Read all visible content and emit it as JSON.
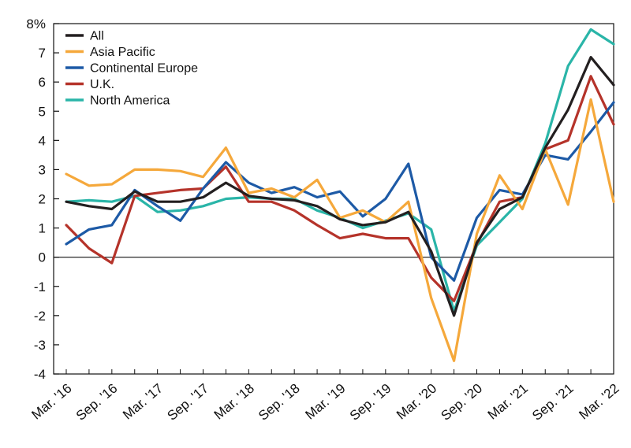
{
  "chart_data": {
    "type": "line",
    "title": "",
    "xlabel": "",
    "ylabel": "",
    "ylim": [
      -4,
      8
    ],
    "y_ticks": [
      -4,
      -3,
      -2,
      -1,
      0,
      1,
      2,
      3,
      4,
      5,
      6,
      7,
      8
    ],
    "y_tick_labels": [
      "-4",
      "-3",
      "-2",
      "-1",
      "0",
      "1",
      "2",
      "3",
      "4",
      "5",
      "6",
      "7",
      "8%"
    ],
    "x": [
      "Mar. '16",
      "Jun. '16",
      "Sep. '16",
      "Dec. '16",
      "Mar. '17",
      "Jun. '17",
      "Sep. '17",
      "Dec. '17",
      "Mar. '18",
      "Jun. '18",
      "Sep. '18",
      "Dec. '18",
      "Mar. '19",
      "Jun. '19",
      "Sep. '19",
      "Dec. '19",
      "Mar. '20",
      "Jun. '20",
      "Sep. '20",
      "Dec. '20",
      "Mar. '21",
      "Jun. '21",
      "Sep. '21",
      "Dec. '21",
      "Mar. '22"
    ],
    "x_tick_labels": [
      "Mar. '16",
      "Sep. '16",
      "Mar. '17",
      "Sep. '17",
      "Mar. '18",
      "Sep. '18",
      "Mar. '19",
      "Sep. '19",
      "Mar. '20",
      "Sep. '20",
      "Mar. '21",
      "Sep. '21",
      "Mar. '22"
    ],
    "grid": false,
    "legend_position": "top-left",
    "series": [
      {
        "name": "All",
        "color": "#231f20",
        "values": [
          1.9,
          1.75,
          1.65,
          2.25,
          1.9,
          1.9,
          2.05,
          2.55,
          2.1,
          2.0,
          1.95,
          1.75,
          1.3,
          1.1,
          1.2,
          1.55,
          0.2,
          -2.0,
          0.5,
          1.65,
          2.05,
          3.75,
          5.05,
          6.85,
          5.9
        ]
      },
      {
        "name": "Asia Pacific",
        "color": "#f5a83b",
        "values": [
          2.85,
          2.45,
          2.5,
          3.0,
          3.0,
          2.95,
          2.75,
          3.75,
          2.2,
          2.35,
          2.05,
          2.65,
          1.35,
          1.6,
          1.2,
          1.9,
          -1.4,
          -3.55,
          0.8,
          2.8,
          1.65,
          3.7,
          1.8,
          5.4,
          1.9
        ]
      },
      {
        "name": "Continental Europe",
        "color": "#1d5aa6",
        "values": [
          0.45,
          0.95,
          1.1,
          2.3,
          1.75,
          1.25,
          2.35,
          3.25,
          2.55,
          2.2,
          2.4,
          2.05,
          2.25,
          1.4,
          2.0,
          3.2,
          0.0,
          -0.8,
          1.35,
          2.3,
          2.15,
          3.5,
          3.35,
          4.3,
          5.3
        ]
      },
      {
        "name": "U.K.",
        "color": "#b5332a",
        "values": [
          1.1,
          0.3,
          -0.2,
          2.1,
          2.2,
          2.3,
          2.35,
          3.1,
          1.9,
          1.9,
          1.6,
          1.1,
          0.65,
          0.8,
          0.65,
          0.65,
          -0.7,
          -1.5,
          0.45,
          1.9,
          2.05,
          3.7,
          4.0,
          6.2,
          4.55
        ]
      },
      {
        "name": "North America",
        "color": "#2ab5a8",
        "values": [
          1.9,
          1.95,
          1.9,
          2.1,
          1.55,
          1.6,
          1.75,
          2.0,
          2.05,
          2.0,
          2.0,
          1.6,
          1.35,
          1.0,
          1.25,
          1.5,
          0.95,
          -1.85,
          0.4,
          1.2,
          2.0,
          3.9,
          6.55,
          7.8,
          7.3
        ]
      }
    ]
  }
}
